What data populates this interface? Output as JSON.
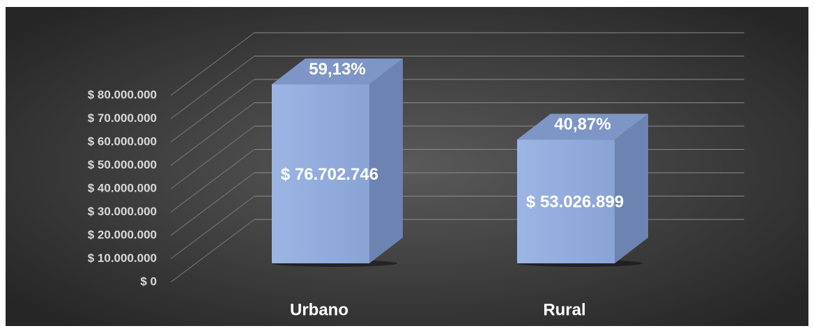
{
  "chart_data": {
    "type": "bar3d",
    "categories": [
      "Urbano",
      "Rural"
    ],
    "values": [
      76702746,
      53026899
    ],
    "value_labels": [
      "$ 76.702.746",
      "$ 53.026.899"
    ],
    "annotations": [
      "59,13%",
      "40,87%"
    ],
    "color": "#8faadc",
    "ylim": [
      0,
      80000000
    ],
    "yticks": [
      {
        "value": 0,
        "label": "$ 0"
      },
      {
        "value": 10000000,
        "label": "$ 10.000.000"
      },
      {
        "value": 20000000,
        "label": "$ 20.000.000"
      },
      {
        "value": 30000000,
        "label": "$ 30.000.000"
      },
      {
        "value": 40000000,
        "label": "$ 40.000.000"
      },
      {
        "value": 50000000,
        "label": "$ 50.000.000"
      },
      {
        "value": 60000000,
        "label": "$ 60.000.000"
      },
      {
        "value": 70000000,
        "label": "$ 70.000.000"
      },
      {
        "value": 80000000,
        "label": "$ 80.000.000"
      }
    ],
    "grid": true
  }
}
